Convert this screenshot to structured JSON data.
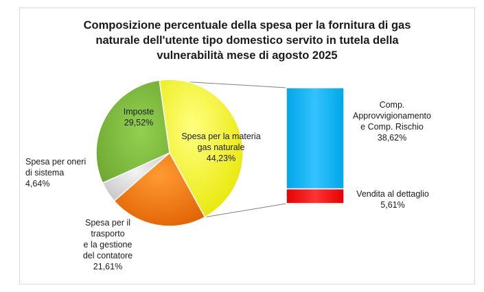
{
  "chart_data": {
    "type": "pie",
    "title_lines": [
      "Composizione percentuale della spesa per la fornitura di gas",
      "naturale dell'utente tipo domestico servito in tutela della",
      "vulnerabilità mese di agosto 2025"
    ],
    "slices": [
      {
        "key": "materia",
        "label_lines": [
          "Spesa per la materia",
          "gas naturale"
        ],
        "value": 44.23,
        "value_text": "44,23%",
        "color": "#ffff00"
      },
      {
        "key": "trasporto",
        "label_lines": [
          "Spesa per il",
          "trasporto",
          "e la gestione",
          "del contatore"
        ],
        "value": 21.61,
        "value_text": "21,61%",
        "color": "#ff7f00"
      },
      {
        "key": "oneri",
        "label_lines": [
          "Spesa per oneri",
          "di sistema"
        ],
        "value": 4.64,
        "value_text": "4,64%",
        "color": "#d9d9d9"
      },
      {
        "key": "imposte",
        "label_lines": [
          "Imposte"
        ],
        "value": 29.52,
        "value_text": "29,52%",
        "color": "#8cc63f"
      }
    ],
    "breakdown_of": "materia",
    "stack": [
      {
        "key": "approvvigionamento",
        "label_lines": [
          "Comp.",
          "Approvvigionamento",
          "e  Comp. Rischio"
        ],
        "value": 38.62,
        "value_text": "38,62%",
        "color": "#00b0f0"
      },
      {
        "key": "vendita",
        "label_lines": [
          "Vendita al dettaglio"
        ],
        "value": 5.61,
        "value_text": "5,61%",
        "color": "#ff0000"
      }
    ]
  }
}
